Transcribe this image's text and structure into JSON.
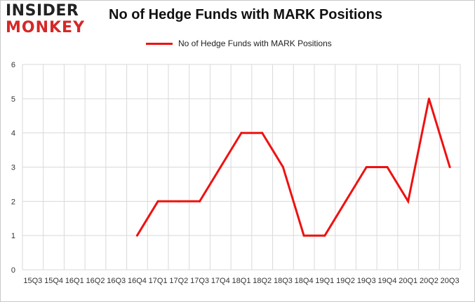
{
  "logo": {
    "line1": "INSIDER",
    "line2": "MONKEY"
  },
  "chart_data": {
    "type": "line",
    "title": "No of Hedge Funds with MARK Positions",
    "categories": [
      "15Q3",
      "15Q4",
      "16Q1",
      "16Q2",
      "16Q3",
      "16Q4",
      "17Q1",
      "17Q2",
      "17Q3",
      "17Q4",
      "18Q1",
      "18Q2",
      "18Q3",
      "18Q4",
      "19Q1",
      "19Q2",
      "19Q3",
      "19Q4",
      "20Q1",
      "20Q2",
      "20Q3"
    ],
    "series": [
      {
        "name": "No of Hedge Funds with MARK Positions",
        "color": "#ee1111",
        "values": [
          null,
          null,
          null,
          null,
          null,
          1,
          2,
          2,
          2,
          3,
          4,
          4,
          3,
          1,
          1,
          2,
          3,
          3,
          2,
          5,
          3
        ]
      }
    ],
    "ylim": [
      0,
      6
    ],
    "yticks": [
      0,
      1,
      2,
      3,
      4,
      5,
      6
    ],
    "xlabel": "",
    "ylabel": "",
    "grid": true,
    "legend": "top-center"
  }
}
